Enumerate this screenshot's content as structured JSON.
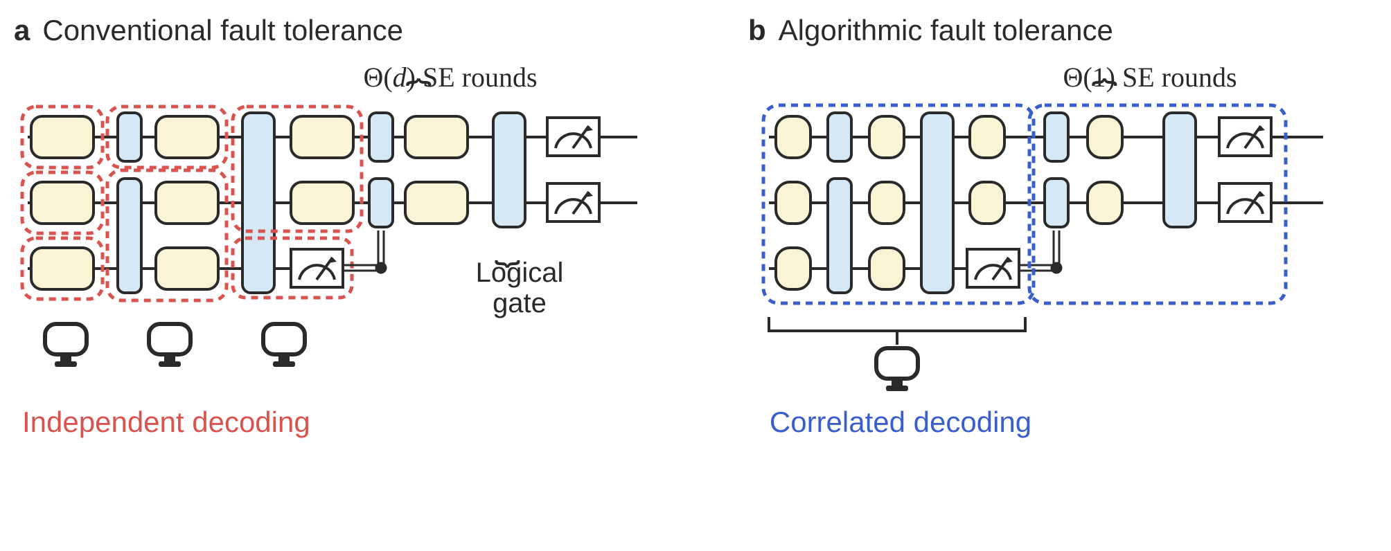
{
  "panelA": {
    "letter": "a",
    "title": "Conventional fault tolerance",
    "se_label_html": "<span class='upright'>Θ(</span>d<span class='upright'>) SE rounds</span>",
    "logical_gate": "Logical\ngate",
    "decoding_label": "Independent decoding",
    "colors": {
      "se_fill": "#f9f4d6",
      "gate_fill": "#d4e9f5",
      "stroke": "#2a2a2a",
      "dash_red": "#d9534f"
    },
    "layout": {
      "wire_y": [
        60,
        155,
        250
      ],
      "se_w": 90,
      "se_h": 60,
      "se_r": 16,
      "narrow_se_w": 50,
      "gate1_w": 34,
      "gate1_h": 70,
      "gate2_w": 46,
      "gate2_h": 260,
      "meter_w": 75,
      "meter_h": 55
    }
  },
  "panelB": {
    "letter": "b",
    "title": "Algorithmic fault tolerance",
    "se_label_html": "<span class='upright'>Θ(1) SE rounds</span>",
    "decoding_label": "Correlated decoding",
    "colors": {
      "se_fill": "#f9f4d6",
      "gate_fill": "#d4e9f5",
      "stroke": "#2a2a2a",
      "dash_blue": "#3a5fcc"
    }
  },
  "style": {
    "stroke_width": 4,
    "dash_pattern": "10,8",
    "dash_width": 5
  }
}
